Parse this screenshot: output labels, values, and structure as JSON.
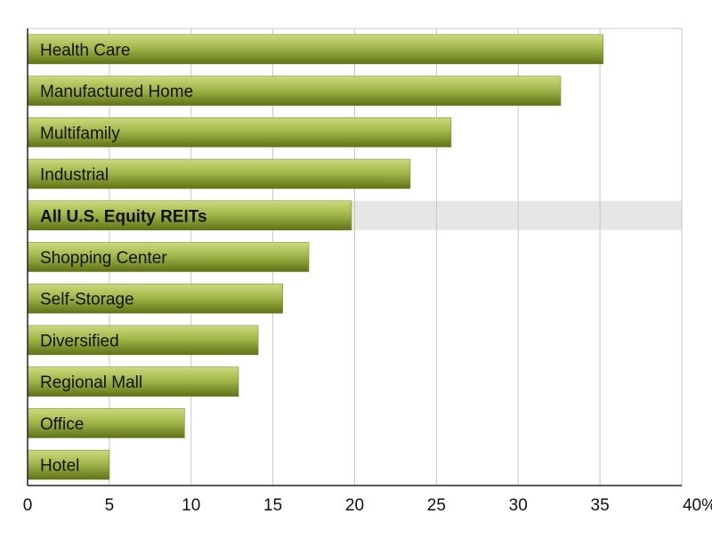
{
  "chart_data": {
    "type": "bar",
    "orientation": "horizontal",
    "categories": [
      "Health Care",
      "Manufactured Home",
      "Multifamily",
      "Industrial",
      "All U.S. Equity REITs",
      "Shopping Center",
      "Self-Storage",
      "Diversified",
      "Regional Mall",
      "Office",
      "Hotel"
    ],
    "values": [
      35.2,
      32.6,
      25.9,
      23.4,
      19.8,
      17.2,
      15.6,
      14.1,
      12.9,
      9.6,
      5.0
    ],
    "highlighted_category": "All U.S. Equity REITs",
    "xlim": [
      0,
      40
    ],
    "x_ticks": [
      "0",
      "5",
      "10",
      "15",
      "20",
      "25",
      "30",
      "35",
      "40%"
    ],
    "grid": "vertical",
    "colors": {
      "bar_light": "#b3c463",
      "bar_dark": "#5f7316",
      "highlight_band": "#e6e6e6",
      "grid": "#c7c7c7",
      "axis": "#222222",
      "label": "#111111"
    }
  }
}
